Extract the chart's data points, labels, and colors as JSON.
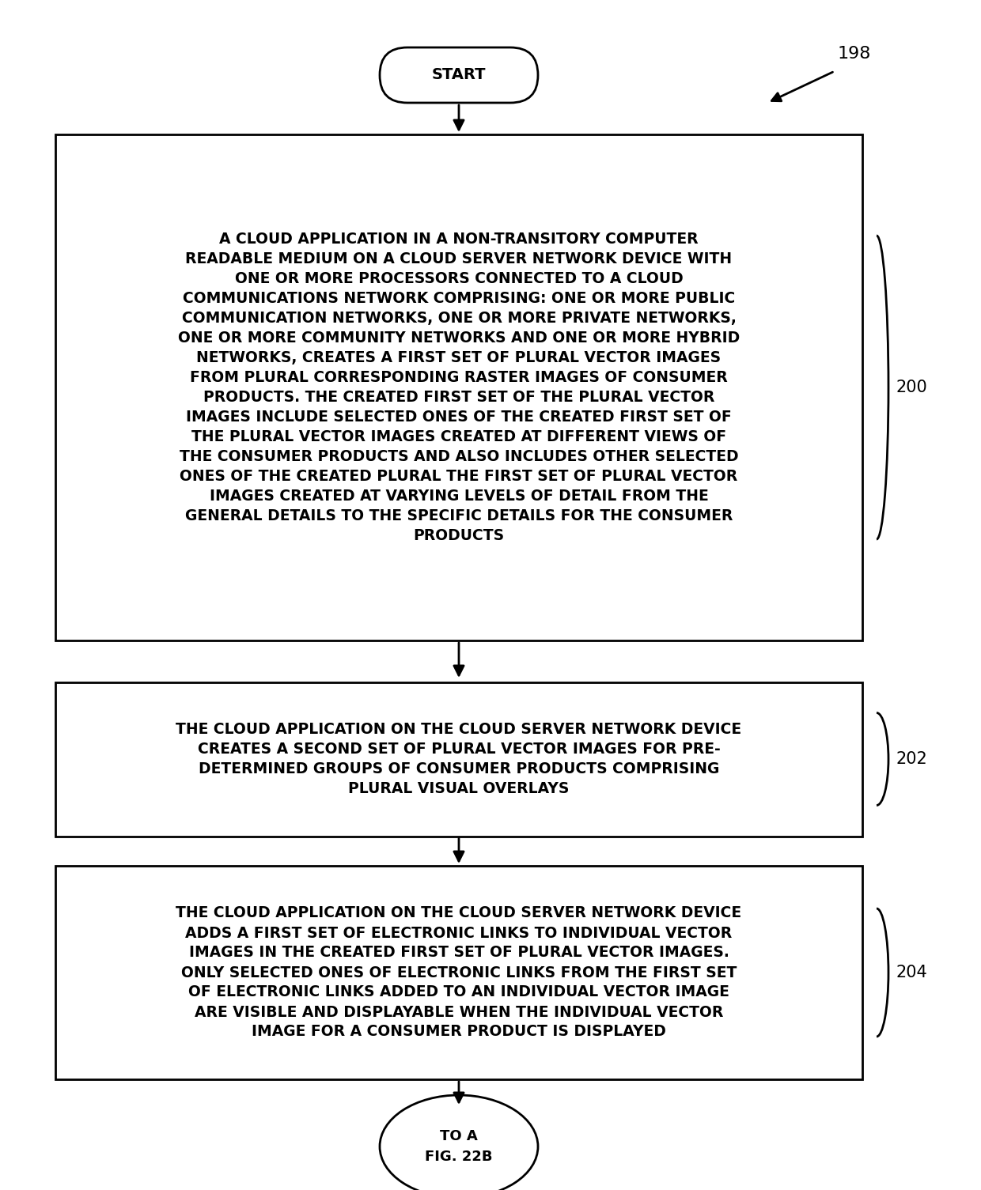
{
  "bg_color": "#ffffff",
  "text_color": "#000000",
  "fig_label": "198",
  "start_label": "START",
  "end_label": "TO A\nFIG. 22B",
  "box1_label": "200",
  "box2_label": "202",
  "box3_label": "204",
  "box1_text": "A CLOUD APPLICATION IN A NON-TRANSITORY COMPUTER\nREADABLE MEDIUM ON A CLOUD SERVER NETWORK DEVICE WITH\nONE OR MORE PROCESSORS CONNECTED TO A CLOUD\nCOMMUNICATIONS NETWORK COMPRISING: ONE OR MORE PUBLIC\nCOMMUNICATION NETWORKS, ONE OR MORE PRIVATE NETWORKS,\nONE OR MORE COMMUNITY NETWORKS AND ONE OR MORE HYBRID\nNETWORKS, CREATES A FIRST SET OF PLURAL VECTOR IMAGES\nFROM PLURAL CORRESPONDING RASTER IMAGES OF CONSUMER\nPRODUCTS. THE CREATED FIRST SET OF THE PLURAL VECTOR\nIMAGES INCLUDE SELECTED ONES OF THE CREATED FIRST SET OF\nTHE PLURAL VECTOR IMAGES CREATED AT DIFFERENT VIEWS OF\nTHE CONSUMER PRODUCTS AND ALSO INCLUDES OTHER SELECTED\nONES OF THE CREATED PLURAL THE FIRST SET OF PLURAL VECTOR\nIMAGES CREATED AT VARYING LEVELS OF DETAIL FROM THE\nGENERAL DETAILS TO THE SPECIFIC DETAILS FOR THE CONSUMER\nPRODUCTS",
  "box2_text": "THE CLOUD APPLICATION ON THE CLOUD SERVER NETWORK DEVICE\nCREATES A SECOND SET OF PLURAL VECTOR IMAGES FOR PRE-\nDETERMINED GROUPS OF CONSUMER PRODUCTS COMPRISING\nPLURAL VISUAL OVERLAYS",
  "box3_text": "THE CLOUD APPLICATION ON THE CLOUD SERVER NETWORK DEVICE\nADDS A FIRST SET OF ELECTRONIC LINKS TO INDIVIDUAL VECTOR\nIMAGES IN THE CREATED FIRST SET OF PLURAL VECTOR IMAGES.\nONLY SELECTED ONES OF ELECTRONIC LINKS FROM THE FIRST SET\nOF ELECTRONIC LINKS ADDED TO AN INDIVIDUAL VECTOR IMAGE\nARE VISIBLE AND DISPLAYABLE WHEN THE INDIVIDUAL VECTOR\nIMAGE FOR A CONSUMER PRODUCT IS DISPLAYED",
  "font_size_box": 13.5,
  "font_size_label": 15,
  "font_size_fig_label": 16,
  "font_size_terminal": 14,
  "font_size_end": 13
}
